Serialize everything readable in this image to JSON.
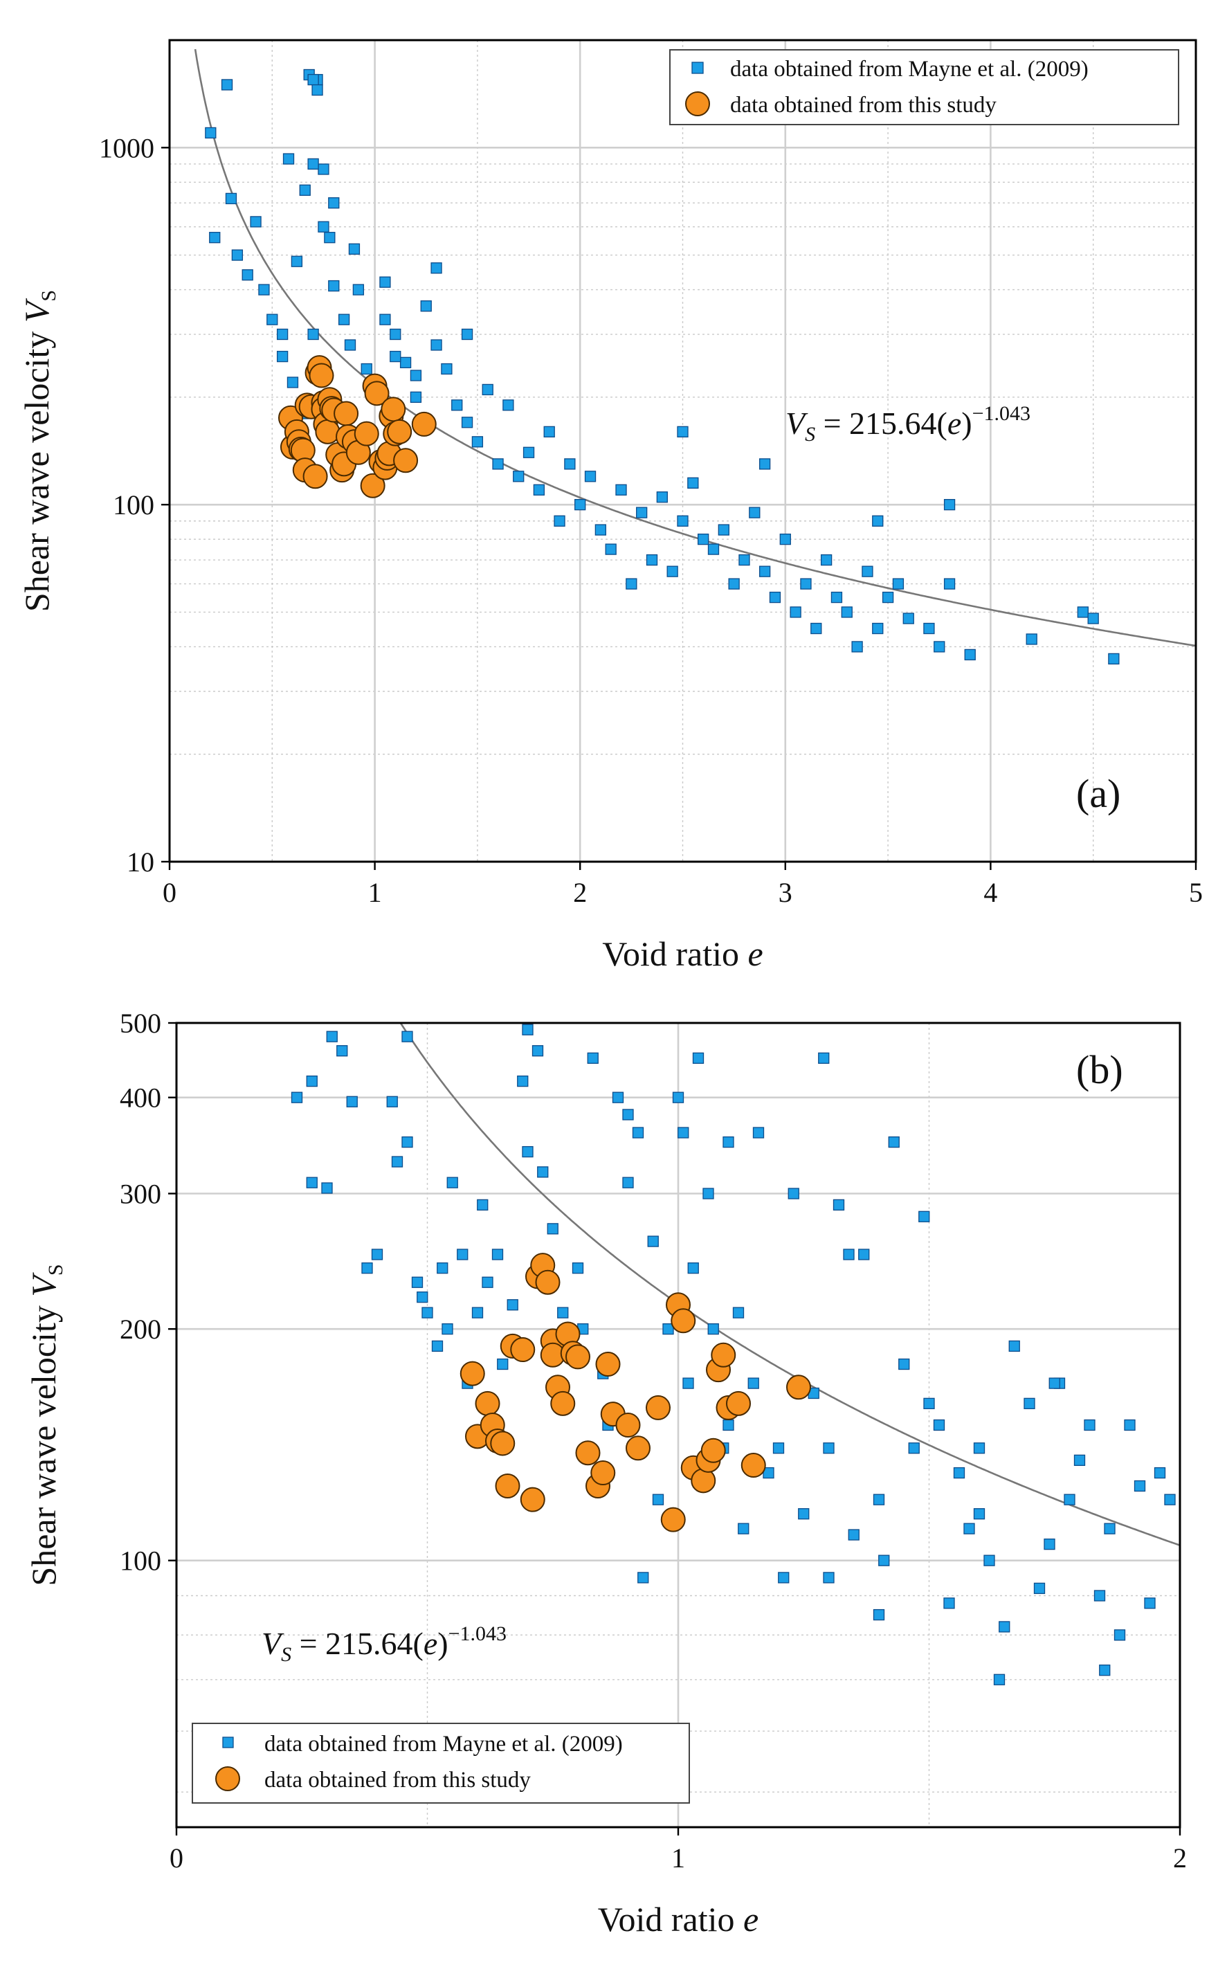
{
  "chart_data": [
    {
      "panel": "(a)",
      "type": "scatter",
      "xlabel": "Void ratio",
      "xlabel_var": "e",
      "ylabel": "Shear wave velocity",
      "ylabel_var": "V",
      "ylabel_sub": "S",
      "xlim": [
        0,
        5
      ],
      "ylim": [
        10,
        2000
      ],
      "yscale": "log",
      "xticks": [
        "0",
        "1",
        "2",
        "3",
        "4",
        "5"
      ],
      "yticks": [
        "10",
        "100",
        "1000"
      ],
      "legend_position": "top-right",
      "equation": {
        "lhs_var": "V",
        "lhs_sub": "S",
        "body": " = 215.64(",
        "var": "e",
        "close": ")",
        "exponent": "−1.043"
      },
      "fit": {
        "a": 215.64,
        "b": -1.043
      },
      "series": [
        {
          "name": "data obtained from Mayne et al. (2009)",
          "marker": "square",
          "color": "#1c9ee6",
          "x": [
            0.2,
            0.22,
            0.28,
            0.3,
            0.33,
            0.38,
            0.42,
            0.46,
            0.5,
            0.55,
            0.58,
            0.62,
            0.66,
            0.7,
            0.72,
            0.75,
            0.78,
            0.8,
            0.85,
            0.88,
            0.92,
            0.96,
            1.0,
            1.05,
            1.1,
            1.15,
            1.2,
            1.25,
            1.3,
            1.35,
            1.4,
            1.45,
            1.5,
            1.55,
            1.6,
            1.65,
            1.7,
            1.75,
            1.8,
            1.85,
            1.9,
            1.95,
            2.0,
            2.05,
            2.1,
            2.15,
            2.2,
            2.25,
            2.3,
            2.35,
            2.4,
            2.45,
            2.5,
            2.55,
            2.6,
            2.65,
            2.7,
            2.75,
            2.8,
            2.85,
            2.9,
            2.95,
            3.0,
            3.05,
            3.1,
            3.15,
            3.2,
            3.25,
            3.3,
            3.35,
            3.4,
            3.45,
            3.5,
            3.55,
            3.6,
            3.7,
            3.75,
            3.8,
            3.9,
            4.2,
            4.45,
            4.5,
            4.6,
            0.68,
            0.7,
            0.72,
            0.55,
            0.6,
            0.65,
            0.7,
            0.75,
            0.8,
            0.9,
            1.05,
            1.1,
            1.2,
            1.3,
            1.45,
            2.5,
            2.9,
            3.45,
            3.8
          ],
          "y": [
            1100,
            560,
            1500,
            720,
            500,
            440,
            620,
            400,
            330,
            260,
            930,
            480,
            760,
            300,
            1550,
            870,
            560,
            410,
            330,
            280,
            400,
            240,
            210,
            420,
            300,
            250,
            200,
            360,
            460,
            240,
            190,
            170,
            150,
            210,
            130,
            190,
            120,
            140,
            110,
            160,
            90,
            130,
            100,
            120,
            85,
            75,
            110,
            60,
            95,
            70,
            105,
            65,
            90,
            115,
            80,
            75,
            85,
            60,
            70,
            95,
            65,
            55,
            80,
            50,
            60,
            45,
            70,
            55,
            50,
            40,
            65,
            45,
            55,
            60,
            48,
            45,
            40,
            100,
            38,
            42,
            50,
            48,
            37,
            1600,
            1550,
            1450,
            300,
            220,
            180,
            900,
            600,
            700,
            520,
            330,
            260,
            230,
            280,
            300,
            160,
            130,
            90,
            60
          ]
        },
        {
          "name": "data obtained from this study",
          "marker": "circle",
          "color": "#f5901e",
          "x": [
            0.59,
            0.6,
            0.62,
            0.63,
            0.64,
            0.65,
            0.66,
            0.67,
            0.69,
            0.71,
            0.72,
            0.73,
            0.74,
            0.75,
            0.75,
            0.76,
            0.77,
            0.78,
            0.79,
            0.8,
            0.82,
            0.84,
            0.85,
            0.86,
            0.87,
            0.9,
            0.92,
            0.96,
            0.99,
            1.0,
            1.01,
            1.03,
            1.05,
            1.06,
            1.07,
            1.08,
            1.09,
            1.1,
            1.12,
            1.15,
            1.24
          ],
          "y": [
            175,
            145,
            160,
            150,
            143,
            142,
            125,
            190,
            188,
            120,
            234,
            242,
            230,
            193,
            185,
            168,
            160,
            197,
            186,
            184,
            138,
            125,
            130,
            180,
            155,
            150,
            140,
            158,
            113,
            215,
            205,
            132,
            127,
            135,
            139,
            177,
            185,
            158,
            160,
            133,
            168
          ]
        }
      ]
    },
    {
      "panel": "(b)",
      "type": "scatter",
      "xlabel": "Void ratio",
      "xlabel_var": "e",
      "ylabel": "Shear wave velocity",
      "ylabel_var": "V",
      "ylabel_sub": "S",
      "xlim": [
        0,
        2
      ],
      "ylim": [
        45,
        500
      ],
      "yscale": "log",
      "xticks": [
        "0",
        "1",
        "2"
      ],
      "yticks": [
        "100",
        "200",
        "300",
        "400",
        "500"
      ],
      "legend_position": "bottom-left",
      "equation": {
        "lhs_var": "V",
        "lhs_sub": "S",
        "body": " = 215.64(",
        "var": "e",
        "close": ")",
        "exponent": "−1.043"
      },
      "fit": {
        "a": 215.64,
        "b": -1.043
      },
      "series": [
        {
          "name": "data obtained from Mayne et al. (2009)",
          "marker": "square",
          "color": "#1c9ee6",
          "x": [
            0.24,
            0.27,
            0.27,
            0.3,
            0.31,
            0.33,
            0.35,
            0.38,
            0.4,
            0.43,
            0.44,
            0.46,
            0.46,
            0.48,
            0.49,
            0.5,
            0.52,
            0.53,
            0.54,
            0.55,
            0.57,
            0.58,
            0.6,
            0.61,
            0.62,
            0.64,
            0.65,
            0.67,
            0.69,
            0.7,
            0.72,
            0.73,
            0.75,
            0.77,
            0.78,
            0.8,
            0.81,
            0.83,
            0.85,
            0.86,
            0.88,
            0.9,
            0.92,
            0.93,
            0.95,
            0.96,
            0.98,
            1.01,
            1.02,
            1.03,
            1.04,
            1.06,
            1.07,
            1.09,
            1.1,
            1.12,
            1.13,
            1.15,
            1.16,
            1.18,
            1.2,
            1.21,
            1.23,
            1.25,
            1.27,
            1.29,
            1.3,
            1.32,
            1.34,
            1.35,
            1.37,
            1.4,
            1.41,
            1.43,
            1.45,
            1.47,
            1.49,
            1.5,
            1.52,
            1.54,
            1.56,
            1.58,
            1.6,
            1.62,
            1.64,
            1.65,
            1.67,
            1.7,
            1.72,
            1.74,
            1.76,
            1.78,
            1.8,
            1.82,
            1.84,
            1.86,
            1.88,
            1.9,
            1.92,
            1.94,
            1.96,
            1.98,
            0.7,
            0.9,
            1.0,
            1.1,
            1.3,
            1.4,
            1.6,
            1.75,
            1.85
          ],
          "y": [
            400,
            310,
            420,
            305,
            480,
            460,
            395,
            240,
            250,
            395,
            330,
            350,
            480,
            230,
            220,
            210,
            190,
            240,
            200,
            310,
            250,
            170,
            210,
            290,
            230,
            250,
            180,
            215,
            420,
            340,
            460,
            320,
            270,
            210,
            160,
            240,
            200,
            450,
            175,
            150,
            400,
            310,
            360,
            95,
            260,
            120,
            200,
            360,
            170,
            240,
            450,
            300,
            200,
            140,
            350,
            210,
            110,
            170,
            360,
            130,
            140,
            95,
            300,
            115,
            165,
            450,
            140,
            290,
            250,
            108,
            250,
            120,
            100,
            350,
            180,
            140,
            280,
            160,
            150,
            88,
            130,
            110,
            140,
            100,
            70,
            82,
            190,
            160,
            92,
            105,
            170,
            120,
            135,
            150,
            90,
            110,
            80,
            150,
            125,
            88,
            130,
            120,
            490,
            380,
            400,
            150,
            95,
            85,
            115,
            170,
            72
          ]
        },
        {
          "name": "data obtained from this study",
          "marker": "circle",
          "color": "#f5901e",
          "x": [
            0.59,
            0.6,
            0.62,
            0.63,
            0.64,
            0.65,
            0.66,
            0.67,
            0.69,
            0.71,
            0.72,
            0.73,
            0.74,
            0.75,
            0.75,
            0.76,
            0.77,
            0.78,
            0.79,
            0.8,
            0.82,
            0.84,
            0.85,
            0.86,
            0.87,
            0.9,
            0.92,
            0.96,
            0.99,
            1.0,
            1.01,
            1.03,
            1.05,
            1.06,
            1.07,
            1.08,
            1.09,
            1.1,
            1.12,
            1.15,
            1.24
          ],
          "y": [
            175,
            145,
            160,
            150,
            143,
            142,
            125,
            190,
            188,
            120,
            234,
            242,
            230,
            193,
            185,
            168,
            160,
            197,
            186,
            184,
            138,
            125,
            130,
            180,
            155,
            150,
            140,
            158,
            113,
            215,
            205,
            132,
            127,
            135,
            139,
            177,
            185,
            158,
            160,
            133,
            168
          ]
        }
      ]
    }
  ]
}
